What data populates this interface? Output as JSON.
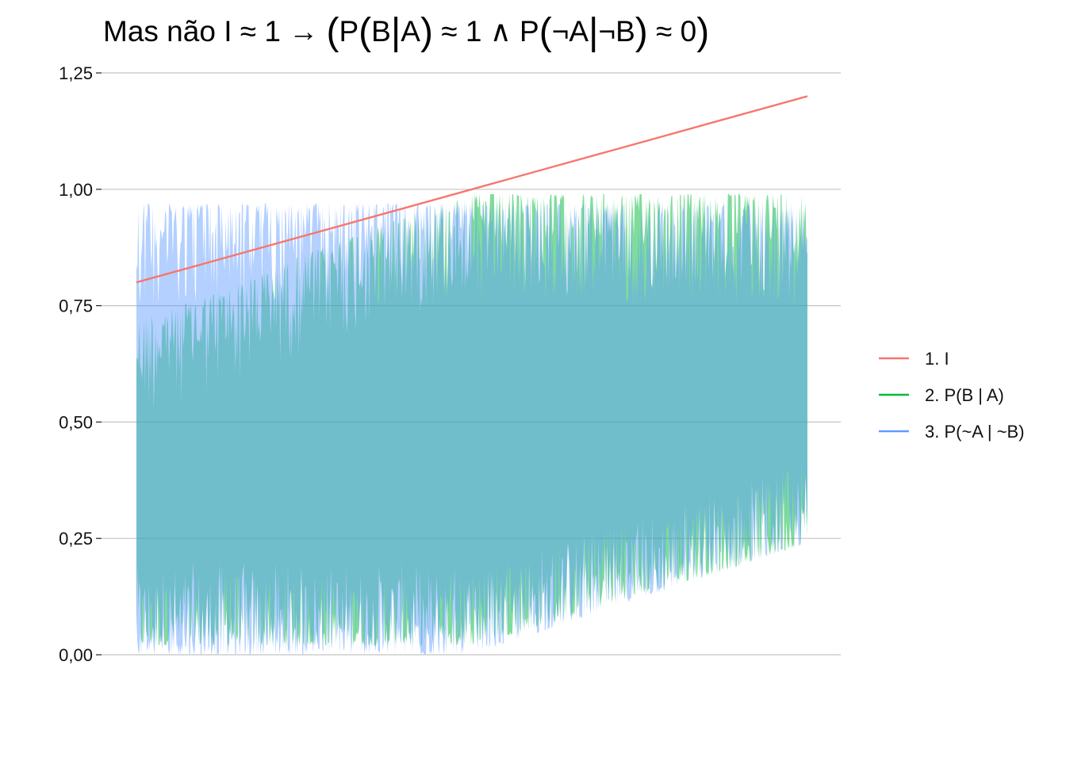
{
  "chart_data": {
    "type": "area",
    "title": "Mas não I ≈ 1 → (P(B|A) ≈ 1 ∧ P(¬A|¬B) ≈ 0)",
    "title_parts": {
      "prefix": "Mas não I ≈ 1 → ",
      "open_outer": "(",
      "p1": "P",
      "open1": "(",
      "p1_b": "B",
      "bar1": "|",
      "p1_a": "A",
      "close1": ")",
      "mid": " ≈ 1 ∧ P",
      "open2": "(",
      "p2_a": "¬A",
      "bar2": "|",
      "p2_b": "¬B",
      "close2": ")",
      "suffix": " ≈ 0",
      "close_outer": ")"
    },
    "xlabel": "",
    "ylabel": "",
    "ylim": [
      0,
      1.25
    ],
    "y_ticks": [
      {
        "value": 0,
        "label": "0,00"
      },
      {
        "value": 0.25,
        "label": "0,25"
      },
      {
        "value": 0.5,
        "label": "0,50"
      },
      {
        "value": 0.75,
        "label": "0,75"
      },
      {
        "value": 1.0,
        "label": "1,00"
      },
      {
        "value": 1.25,
        "label": "1,25"
      }
    ],
    "x_range": [
      0.8,
      1.2
    ],
    "x_axis_visible": false,
    "grid": "horizontal",
    "legend_position": "right",
    "series": [
      {
        "name": "1. I",
        "kind": "line",
        "color": "#F8766D",
        "x": [
          0.8,
          0.85,
          0.9,
          0.95,
          1.0,
          1.05,
          1.1,
          1.15,
          1.2
        ],
        "y": [
          0.8,
          0.85,
          0.9,
          0.95,
          1.0,
          1.05,
          1.1,
          1.15,
          1.2
        ]
      },
      {
        "name": "2. P(B | A)",
        "kind": "band",
        "color": "#00BA38",
        "x": [
          0.8,
          0.85,
          0.9,
          0.95,
          1.0,
          1.05,
          1.1,
          1.15,
          1.2
        ],
        "upper": [
          0.72,
          0.78,
          0.86,
          0.93,
          0.99,
          0.99,
          0.99,
          0.99,
          0.99
        ],
        "lower": [
          0.02,
          0.02,
          0.02,
          0.02,
          0.02,
          0.07,
          0.13,
          0.18,
          0.24
        ]
      },
      {
        "name": "3. P(~A | ~B)",
        "kind": "band",
        "color": "#619CFF",
        "x": [
          0.8,
          0.85,
          0.9,
          0.95,
          1.0,
          1.05,
          1.1,
          1.15,
          1.2
        ],
        "upper": [
          0.97,
          0.97,
          0.97,
          0.97,
          0.97,
          0.97,
          0.97,
          0.97,
          0.97
        ],
        "lower": [
          0.0,
          0.0,
          0.0,
          0.0,
          0.0,
          0.06,
          0.12,
          0.18,
          0.24
        ]
      }
    ],
    "legend": [
      {
        "label": "1. I",
        "color": "#F8766D"
      },
      {
        "label": "2. P(B | A)",
        "color": "#00BA38"
      },
      {
        "label": "3. P(~A | ~B)",
        "color": "#619CFF"
      }
    ]
  }
}
